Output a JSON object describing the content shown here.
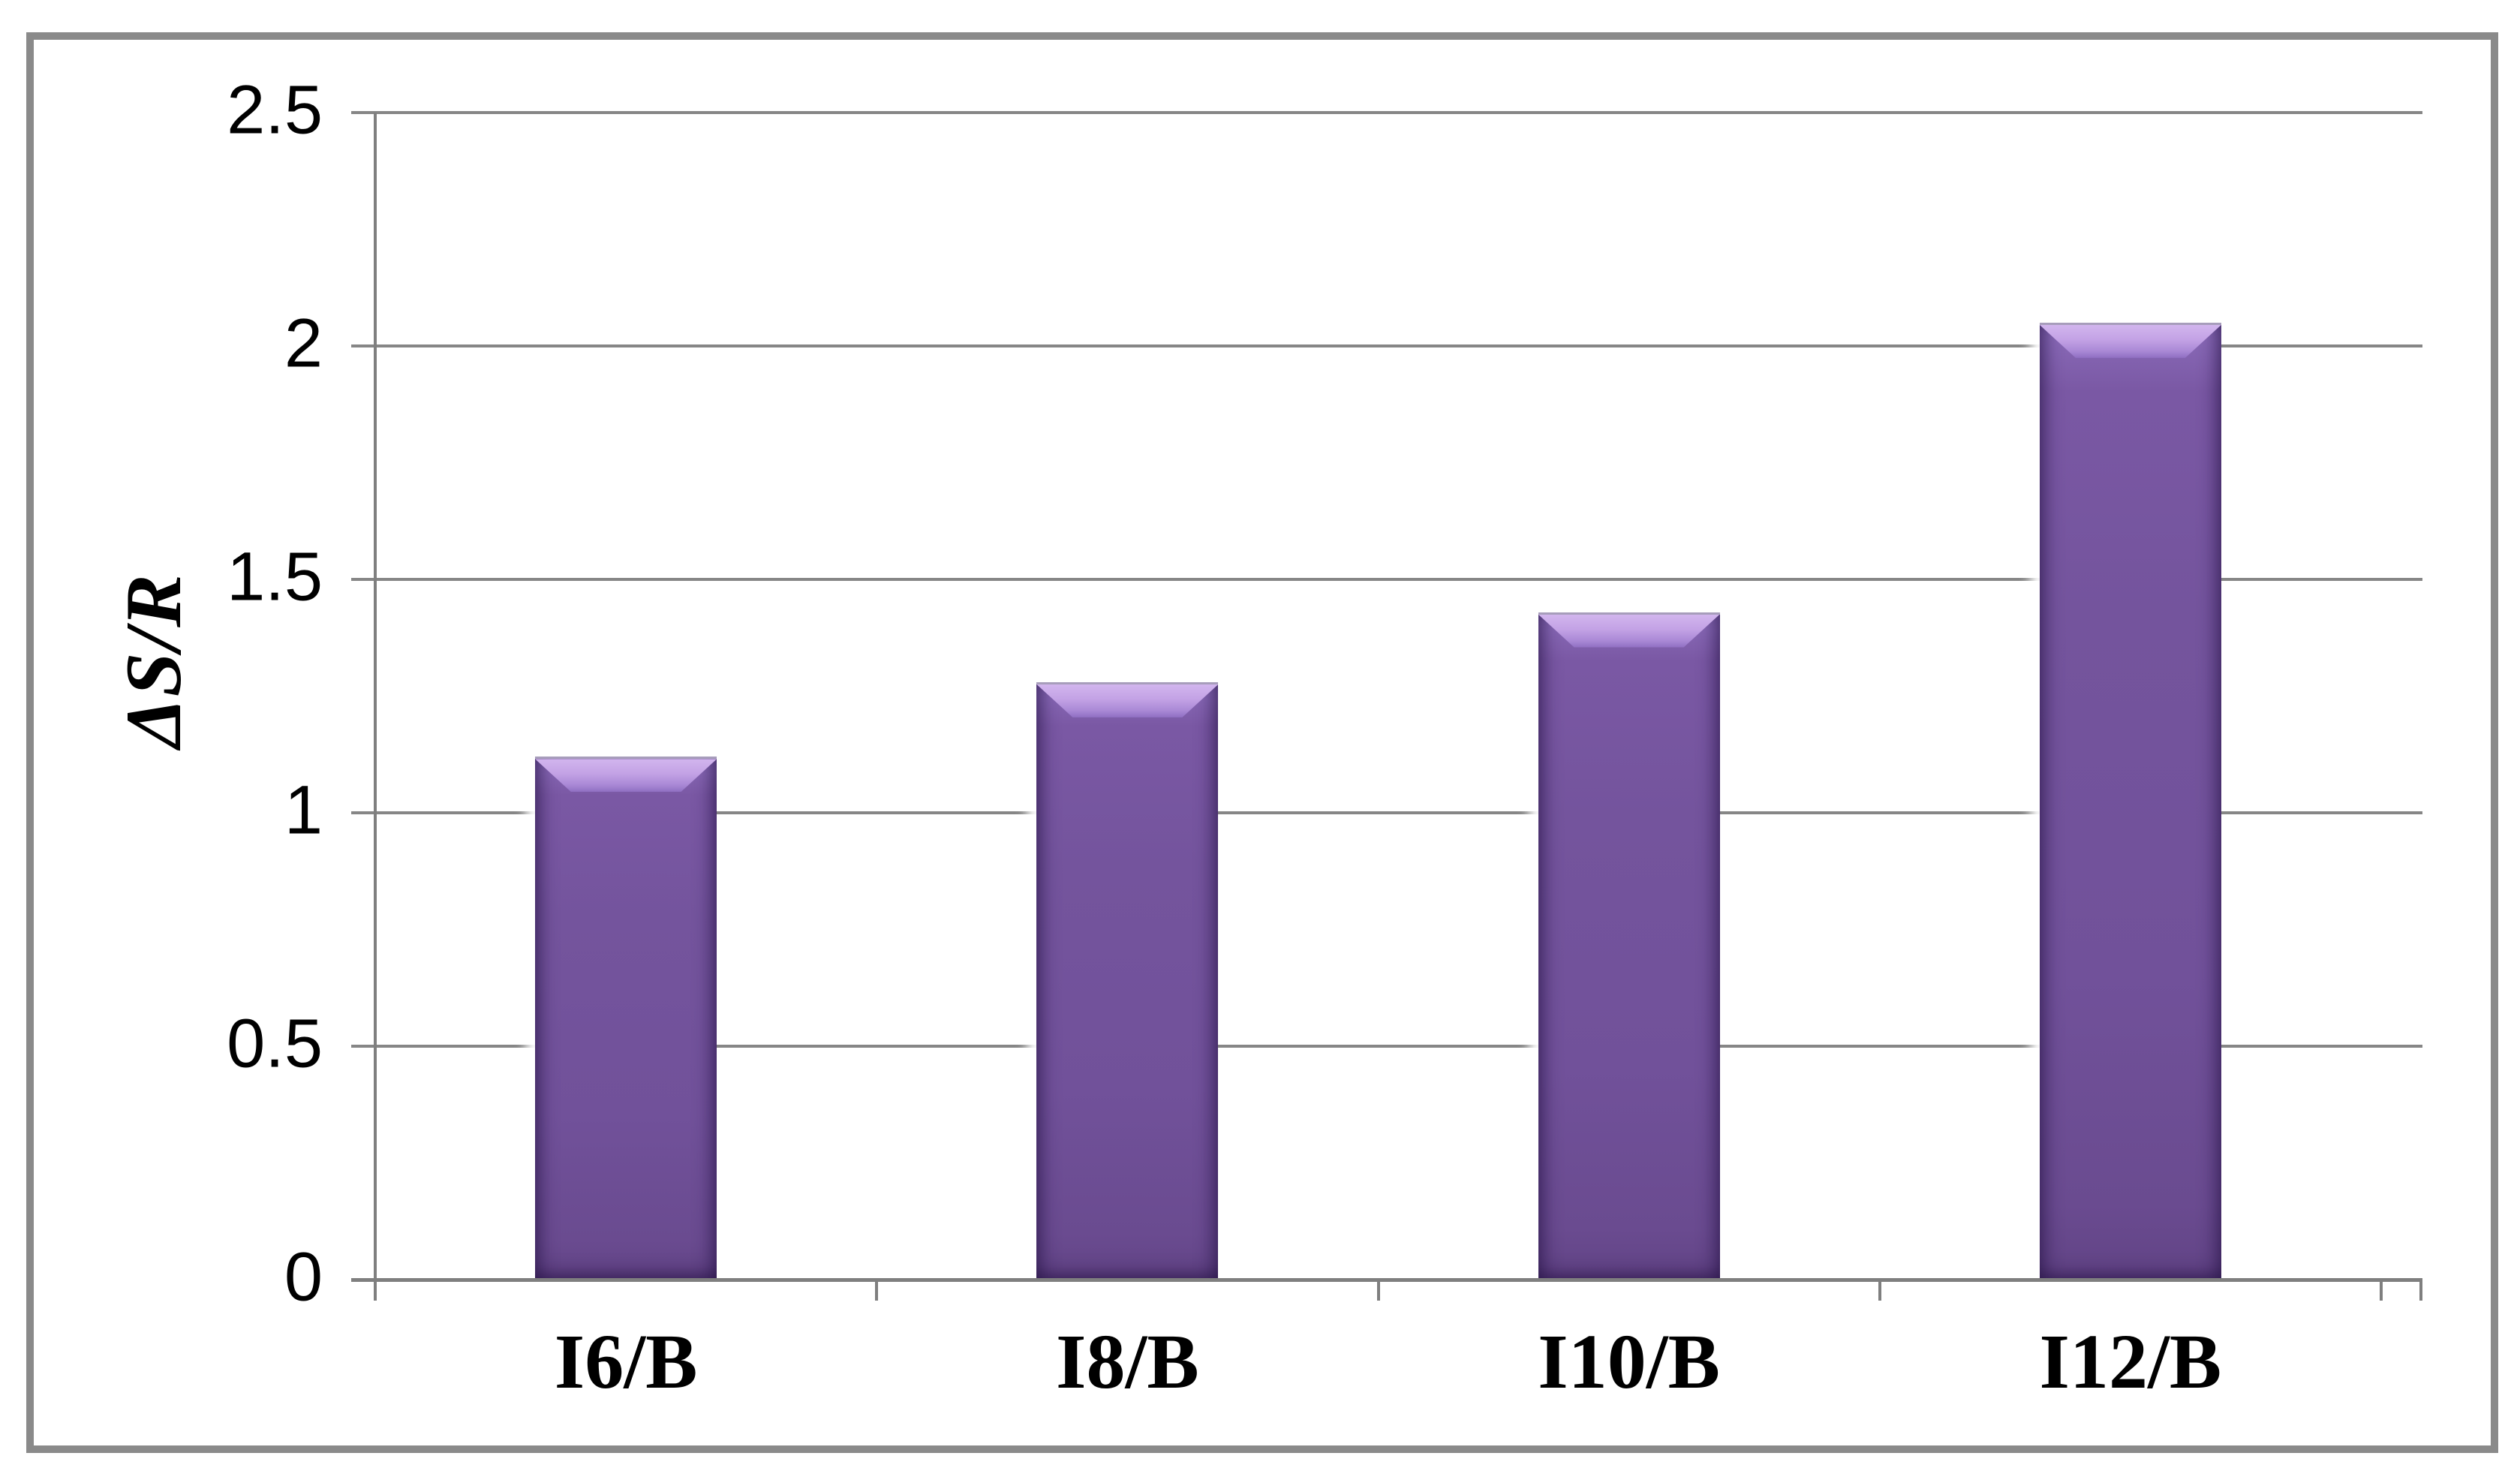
{
  "chart_data": {
    "type": "bar",
    "title": "",
    "xlabel": "",
    "ylabel": "ΔS/R",
    "categories": [
      "I6/B",
      "I8/B",
      "I10/B",
      "I12/B"
    ],
    "values": [
      1.12,
      1.28,
      1.43,
      2.05
    ],
    "ylim": [
      0,
      2.5
    ],
    "ytick_step": 0.5,
    "yticks": [
      {
        "value": 0,
        "label": "0"
      },
      {
        "value": 0.5,
        "label": "0.5"
      },
      {
        "value": 1,
        "label": "1"
      },
      {
        "value": 1.5,
        "label": "1.5"
      },
      {
        "value": 2,
        "label": "2"
      },
      {
        "value": 2.5,
        "label": "2.5"
      }
    ],
    "grid": true,
    "legend": false,
    "colors": {
      "bar_fill": "#72529a",
      "bar_highlight": "#c3a2e5",
      "bar_edge_shade": "#553c7e",
      "gridline": "#868686",
      "axis": "#7f7f7f",
      "frame_border": "#8a8a8a",
      "background": "#ffffff",
      "text": "#000000"
    }
  }
}
